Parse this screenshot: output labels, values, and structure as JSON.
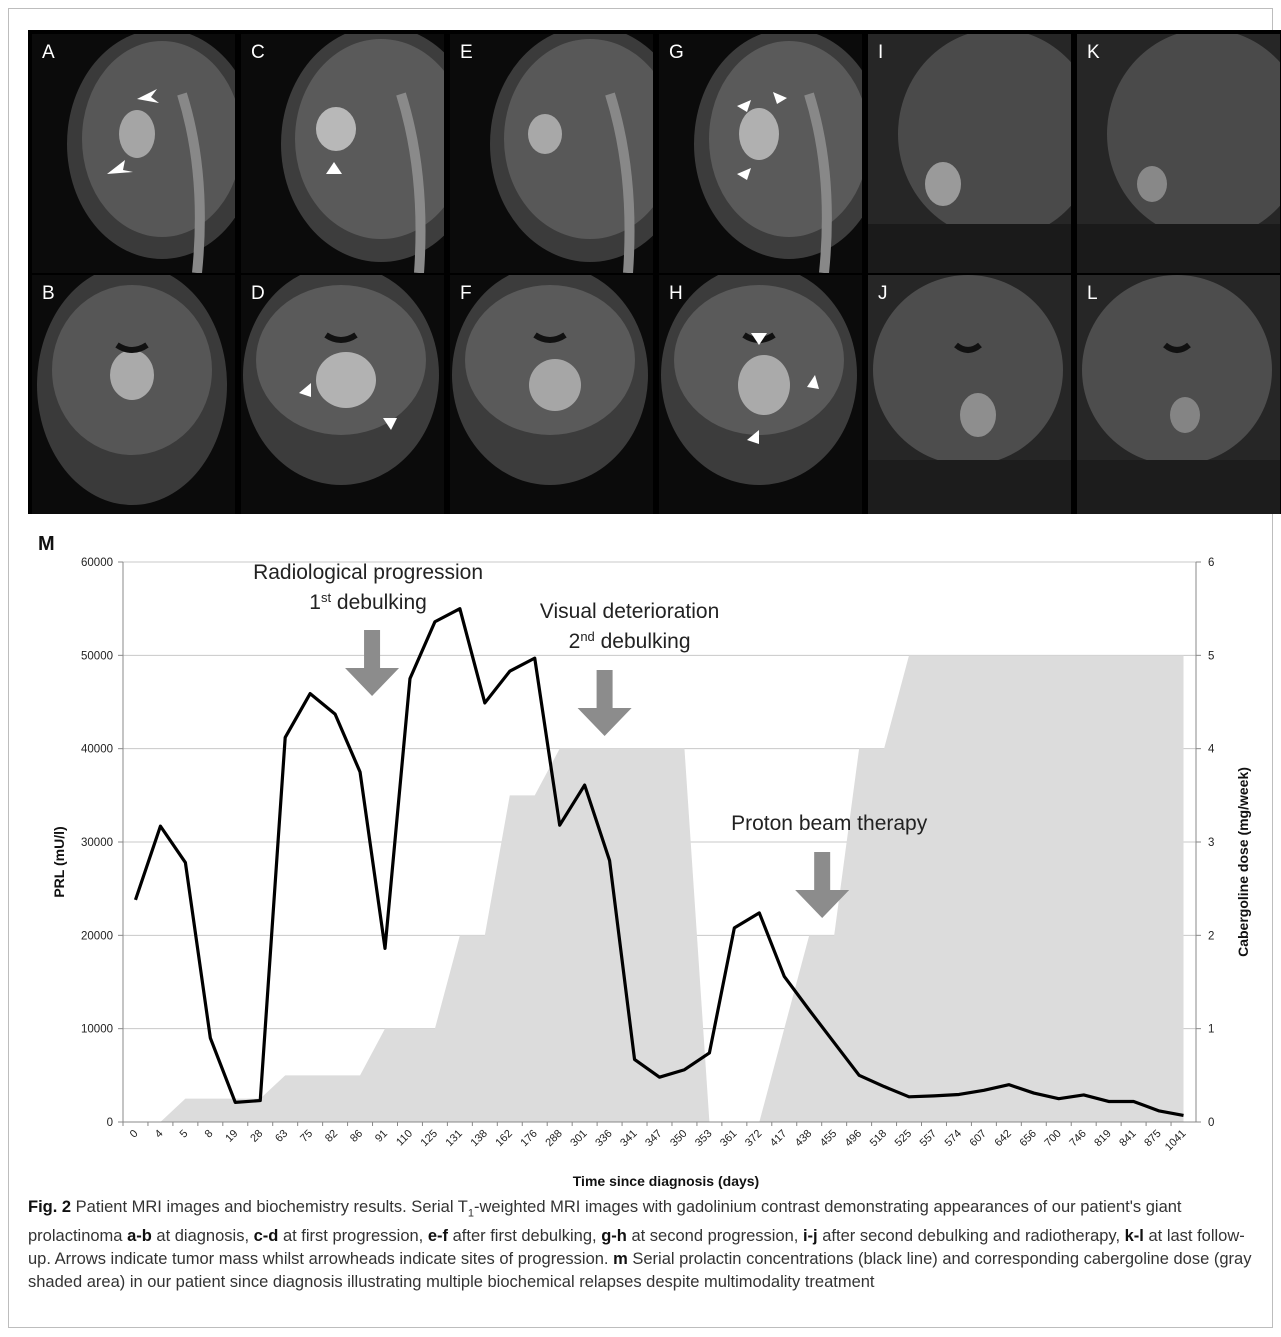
{
  "panels": {
    "top": [
      "A",
      "C",
      "E",
      "G",
      "I",
      "K"
    ],
    "bottom": [
      "B",
      "D",
      "F",
      "H",
      "J",
      "L"
    ]
  },
  "chart_data": {
    "type": "line",
    "panel_label": "M",
    "xlabel": "Time since diagnosis (days)",
    "ylabel": "PRL (mU/l)",
    "y2label": "Cabergoline dose (mg/week)",
    "ylim": [
      0,
      60000
    ],
    "y2lim": [
      0,
      6
    ],
    "yticks": [
      0,
      10000,
      20000,
      30000,
      40000,
      50000,
      60000
    ],
    "y2ticks": [
      0,
      1,
      2,
      3,
      4,
      5,
      6
    ],
    "categories": [
      "0",
      "4",
      "5",
      "8",
      "19",
      "28",
      "63",
      "75",
      "82",
      "86",
      "91",
      "110",
      "125",
      "131",
      "138",
      "162",
      "176",
      "288",
      "301",
      "336",
      "341",
      "347",
      "350",
      "353",
      "361",
      "372",
      "417",
      "438",
      "455",
      "496",
      "518",
      "525",
      "557",
      "574",
      "607",
      "642",
      "656",
      "700",
      "746",
      "819",
      "841",
      "875",
      "1041"
    ],
    "series": [
      {
        "name": "PRL",
        "axis": "left",
        "style": "line",
        "color": "#000000",
        "values": [
          23800,
          31700,
          27800,
          9000,
          2100,
          2300,
          41200,
          45900,
          43700,
          37500,
          18600,
          47500,
          53600,
          55000,
          44900,
          48300,
          49700,
          31800,
          36100,
          28000,
          6700,
          4800,
          5600,
          7400,
          20800,
          22400,
          15600,
          12000,
          8500,
          5000,
          3800,
          2700,
          2800,
          2950,
          3400,
          4000,
          3100,
          2500,
          2900,
          2200,
          2200,
          1200,
          700
        ]
      },
      {
        "name": "Cabergoline dose",
        "axis": "right",
        "style": "area",
        "color": "#dcdcdc",
        "values": [
          0,
          0,
          0.25,
          0.25,
          0.25,
          0.25,
          0.5,
          0.5,
          0.5,
          0.5,
          1,
          1,
          1,
          2,
          2,
          3.5,
          3.5,
          4,
          4,
          4,
          4,
          4,
          4,
          0,
          0,
          0,
          1,
          2,
          2,
          4,
          4,
          5,
          5,
          5,
          5,
          5,
          5,
          5,
          5,
          5,
          5,
          5,
          5
        ]
      }
    ],
    "annotations": [
      {
        "line1": "Radiological progression",
        "line2_base": "1",
        "line2_sup": "st",
        "line2_rest": " debulking",
        "at_category": "86"
      },
      {
        "line1": "Visual deterioration",
        "line2_base": "2",
        "line2_sup": "nd",
        "line2_rest": " debulking",
        "at_category": "336"
      },
      {
        "line1": "Proton beam therapy",
        "at_category": "455"
      }
    ],
    "grid": true
  },
  "caption": {
    "fig_label": "Fig. 2",
    "title": " Patient MRI images and biochemistry results. Serial T",
    "t_sub": "1",
    "text_1": "-weighted MRI images with gadolinium contrast demonstrating appearances of our patient's giant prolactinoma ",
    "ab": "a-b",
    "text_2": " at diagnosis, ",
    "cd": "c-d",
    "text_3": " at first progression, ",
    "ef": "e-f",
    "text_4": " after first debulking, ",
    "gh": "g-h",
    "text_5": " at second progression, ",
    "ij": "i-j",
    "text_6": " after second debulking and radiotherapy, ",
    "kl": "k-l",
    "text_7": " at last follow-up. Arrows indicate tumor mass whilst arrowheads indicate sites of progression. ",
    "m": "m",
    "text_8": " Serial prolactin concentrations (black line) and corresponding cabergoline dose (gray shaded area) in our patient since diagnosis illustrating multiple biochemical relapses despite multimodality treatment"
  }
}
